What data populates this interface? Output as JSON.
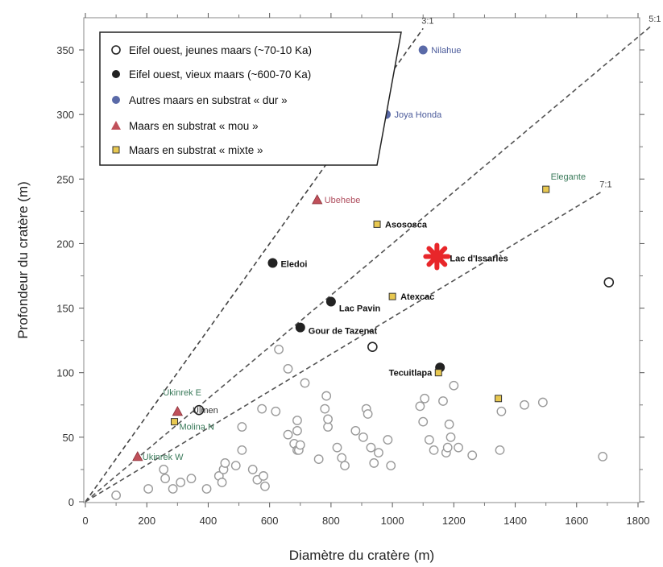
{
  "chart_data": {
    "type": "scatter",
    "xlabel": "Diamètre du cratère (m)",
    "ylabel": "Profondeur du cratère (m)",
    "xlim": [
      0,
      1800
    ],
    "ylim": [
      0,
      370
    ],
    "x_ticks": [
      0,
      200,
      400,
      600,
      800,
      1000,
      1200,
      1400,
      1600,
      1800
    ],
    "y_ticks": [
      0,
      50,
      100,
      150,
      200,
      250,
      300,
      350
    ],
    "grid": false,
    "legend_position": "top-left",
    "legend": [
      {
        "key": "young",
        "label": "Eifel ouest, jeunes maars (~70-10 Ka)"
      },
      {
        "key": "old",
        "label": "Eifel ouest, vieux maars (~600-70 Ka)"
      },
      {
        "key": "hard",
        "label": "Autres maars en substrat « dur »"
      },
      {
        "key": "soft",
        "label": "Maars en substrat « mou »"
      },
      {
        "key": "mixed",
        "label": "Maars en substrat « mixte »"
      }
    ],
    "colors": {
      "young": "#222222",
      "old": "#222222",
      "hard": "#5a6aa8",
      "soft": "#c0505a",
      "mixed": "#e8c850",
      "star": "#e8262a",
      "grey": "#9a9a9a",
      "hard_label": "#4a5a9a",
      "soft_label": "#b05060",
      "mixed_label": "#3a7a5a"
    },
    "ratio_lines": [
      {
        "label": "3:1",
        "ratio": 3,
        "x_end": 1100
      },
      {
        "label": "5:1",
        "ratio": 5,
        "x_end": 1840
      },
      {
        "label": "7:1",
        "ratio": 7,
        "x_end": 1680
      }
    ],
    "labeled_points": [
      {
        "name": "Nilahue",
        "x": 1100,
        "y": 350,
        "series": "hard"
      },
      {
        "name": "Joya Honda",
        "x": 980,
        "y": 300,
        "series": "hard"
      },
      {
        "name": "Elegante",
        "x": 1500,
        "y": 242,
        "series": "mixed"
      },
      {
        "name": "Ubehebe",
        "x": 755,
        "y": 234,
        "series": "soft"
      },
      {
        "name": "Asososca",
        "x": 950,
        "y": 215,
        "series": "mixed"
      },
      {
        "name": "Eledoi",
        "x": 610,
        "y": 185,
        "series": "old"
      },
      {
        "name": "Lac d'Issarlès",
        "x": 1145,
        "y": 190,
        "series": "star"
      },
      {
        "name": "Lac Pavin",
        "x": 800,
        "y": 155,
        "series": "old"
      },
      {
        "name": "Atexcac",
        "x": 1000,
        "y": 159,
        "series": "mixed"
      },
      {
        "name": "Gour de Tazenat",
        "x": 700,
        "y": 135,
        "series": "old"
      },
      {
        "name": "Tecuitlapa",
        "x": 1150,
        "y": 100,
        "series": "mixed"
      },
      {
        "name": "Ukinrek E",
        "x": 300,
        "y": 70,
        "series": "soft"
      },
      {
        "name": "Ulmen",
        "x": 370,
        "y": 71,
        "series": "young"
      },
      {
        "name": "Molina N",
        "x": 290,
        "y": 62,
        "series": "mixed"
      },
      {
        "name": "Ukinrek W",
        "x": 170,
        "y": 35,
        "series": "soft"
      }
    ],
    "other_points": [
      {
        "x": 935,
        "y": 120,
        "series": "young"
      },
      {
        "x": 1705,
        "y": 170,
        "series": "young"
      },
      {
        "x": 1155,
        "y": 104,
        "series": "old"
      },
      {
        "x": 1345,
        "y": 80,
        "series": "mixed"
      }
    ],
    "grey_points": [
      [
        100,
        5
      ],
      [
        205,
        10
      ],
      [
        255,
        25
      ],
      [
        260,
        18
      ],
      [
        285,
        10
      ],
      [
        310,
        15
      ],
      [
        345,
        18
      ],
      [
        395,
        10
      ],
      [
        435,
        20
      ],
      [
        445,
        15
      ],
      [
        450,
        25
      ],
      [
        455,
        30
      ],
      [
        490,
        28
      ],
      [
        510,
        40
      ],
      [
        545,
        25
      ],
      [
        560,
        17
      ],
      [
        580,
        20
      ],
      [
        585,
        12
      ],
      [
        510,
        58
      ],
      [
        575,
        72
      ],
      [
        620,
        70
      ],
      [
        630,
        118
      ],
      [
        660,
        103
      ],
      [
        660,
        52
      ],
      [
        680,
        45
      ],
      [
        690,
        40
      ],
      [
        690,
        55
      ],
      [
        695,
        40
      ],
      [
        700,
        44
      ],
      [
        715,
        92
      ],
      [
        690,
        63
      ],
      [
        785,
        82
      ],
      [
        780,
        72
      ],
      [
        790,
        58
      ],
      [
        790,
        64
      ],
      [
        760,
        33
      ],
      [
        820,
        42
      ],
      [
        835,
        34
      ],
      [
        845,
        28
      ],
      [
        880,
        55
      ],
      [
        905,
        50
      ],
      [
        915,
        72
      ],
      [
        920,
        68
      ],
      [
        930,
        42
      ],
      [
        940,
        30
      ],
      [
        955,
        38
      ],
      [
        985,
        48
      ],
      [
        995,
        28
      ],
      [
        1090,
        74
      ],
      [
        1100,
        62
      ],
      [
        1105,
        80
      ],
      [
        1120,
        48
      ],
      [
        1135,
        40
      ],
      [
        1165,
        78
      ],
      [
        1175,
        38
      ],
      [
        1180,
        42
      ],
      [
        1185,
        60
      ],
      [
        1190,
        50
      ],
      [
        1200,
        90
      ],
      [
        1215,
        42
      ],
      [
        1260,
        36
      ],
      [
        1350,
        40
      ],
      [
        1355,
        70
      ],
      [
        1430,
        75
      ],
      [
        1490,
        77
      ],
      [
        1685,
        35
      ]
    ]
  }
}
